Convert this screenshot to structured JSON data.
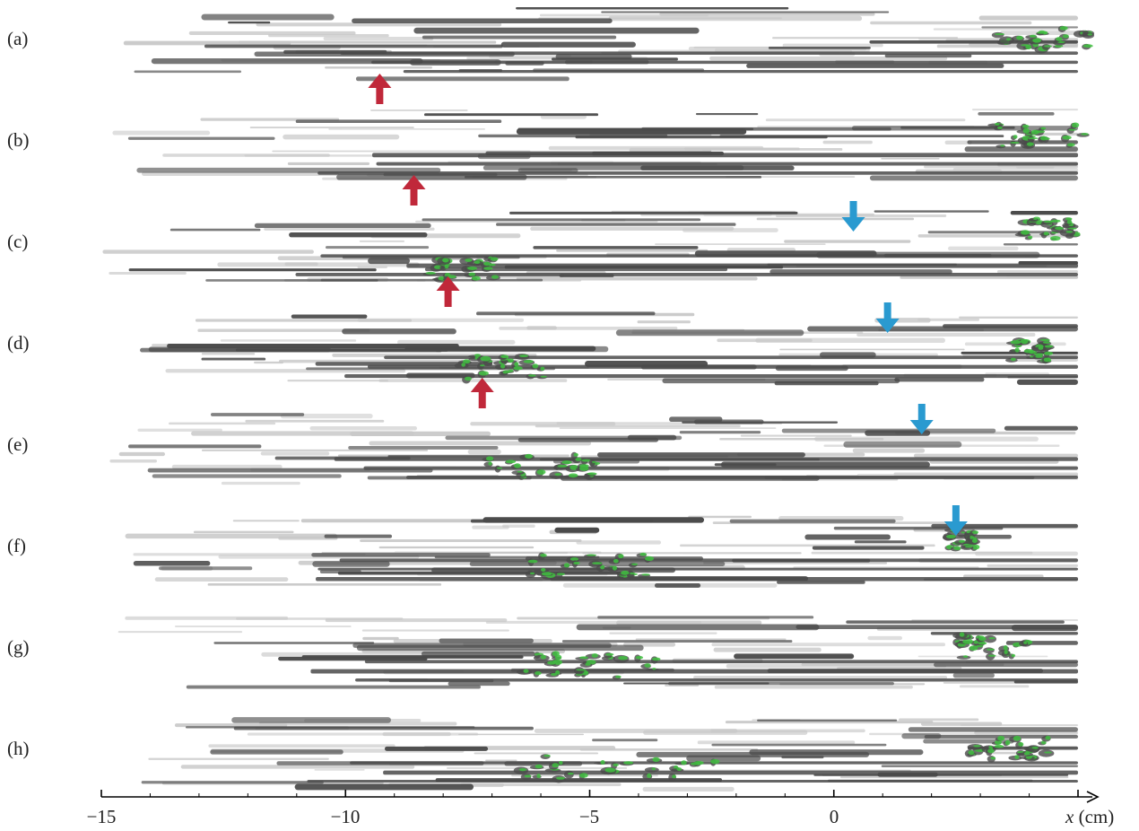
{
  "panels": [
    {
      "label": "(a)",
      "red_arrow_x": -9.3
    },
    {
      "label": "(b)",
      "red_arrow_x": -8.6
    },
    {
      "label": "(c)",
      "red_arrow_x": -7.9,
      "blue_arrow_x": 0.4
    },
    {
      "label": "(d)",
      "red_arrow_x": -7.2,
      "blue_arrow_x": 1.1
    },
    {
      "label": "(e)",
      "blue_arrow_x": 1.8
    },
    {
      "label": "(f)",
      "blue_arrow_x": 2.5
    },
    {
      "label": "(g)"
    },
    {
      "label": "(h)"
    }
  ],
  "axis": {
    "variable": "x",
    "unit": "(cm)",
    "ticks": [
      {
        "value": -15,
        "label": "−15"
      },
      {
        "value": -10,
        "label": "−10"
      },
      {
        "value": -5,
        "label": "−5"
      },
      {
        "value": 0,
        "label": "0"
      },
      {
        "value": 5,
        "label": ""
      }
    ],
    "range": [
      -15,
      5
    ]
  },
  "colors": {
    "streak_dark": "#4a4a4a",
    "streak_light": "#c8c8c8",
    "vortex_green": "#3fbf3f",
    "arrow_red": "#c0283a",
    "arrow_blue": "#2a9ad0"
  }
}
